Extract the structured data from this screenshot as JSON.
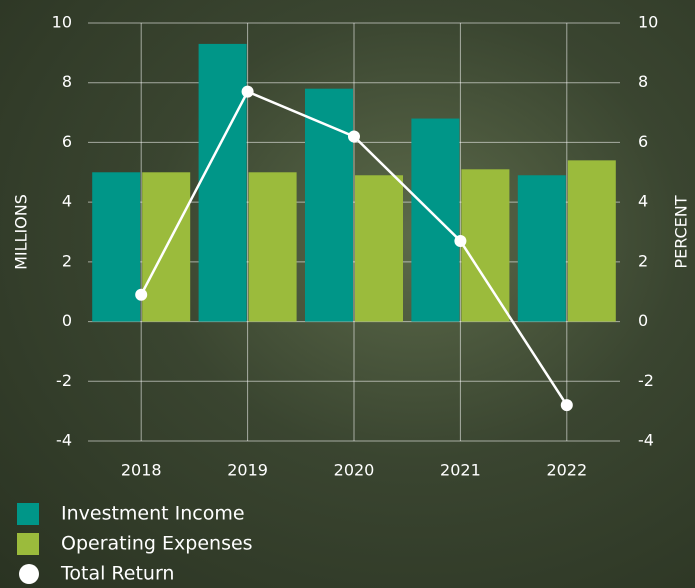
{
  "chart_data": {
    "type": "bar-line",
    "y_label": "MILLIONS",
    "y2_label": "PERCENT",
    "categories": [
      "2018",
      "2019",
      "2020",
      "2021",
      "2022"
    ],
    "series": [
      {
        "name": "Investment Income",
        "color": "#009688",
        "type": "bar",
        "values": [
          5.0,
          9.3,
          7.8,
          6.8,
          4.9
        ]
      },
      {
        "name": "Operating Expenses",
        "color": "#9bbb3c",
        "type": "bar",
        "values": [
          5.0,
          5.0,
          4.9,
          5.1,
          5.4
        ]
      },
      {
        "name": "Total Return",
        "color": "#ffffff",
        "type": "line",
        "axis": "y2",
        "values": [
          0.9,
          7.7,
          6.2,
          2.7,
          -2.8
        ]
      }
    ],
    "ylim": [
      -4,
      10
    ],
    "yticks": [
      -4,
      -2,
      0,
      2,
      4,
      6,
      8,
      10
    ],
    "y2lim": [
      -4,
      10
    ],
    "y2ticks": [
      -4,
      -2,
      0,
      2,
      4,
      6,
      8,
      10
    ],
    "grid": true,
    "legend": "bottom-left"
  }
}
